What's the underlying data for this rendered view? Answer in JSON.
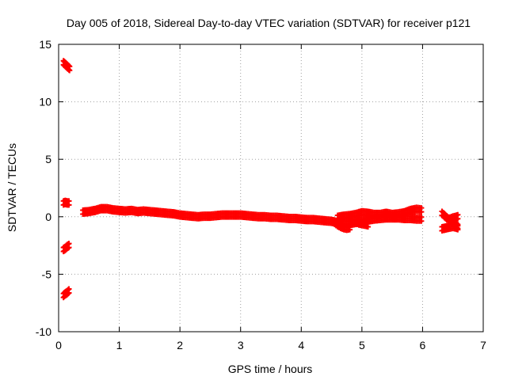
{
  "chart_data": {
    "type": "scatter",
    "title": "Day 005 of 2018, Sidereal Day-to-day VTEC variation (SDTVAR) for receiver p121",
    "xlabel": "GPS time / hours",
    "ylabel": "SDTVAR / TECUs",
    "xlim": [
      0,
      7
    ],
    "ylim": [
      -10,
      15
    ],
    "x_ticks": [
      0,
      1,
      2,
      3,
      4,
      5,
      6,
      7
    ],
    "y_ticks": [
      -10,
      -5,
      0,
      5,
      10,
      15
    ],
    "x_tick_labels": [
      "0",
      "1",
      "2",
      "3",
      "4",
      "5",
      "6",
      "7"
    ],
    "y_tick_labels": [
      "-10",
      "-5",
      "0",
      "5",
      "10",
      "15"
    ],
    "grid": true,
    "marker": "plus",
    "series_color": "#ff0000",
    "series": [
      {
        "segments": [
          {
            "x": [
              0.08,
              0.1,
              0.12,
              0.14,
              0.16,
              0.18
            ],
            "y": [
              13.4,
              13.3,
              13.2,
              13.1,
              13.0,
              12.9
            ]
          },
          {
            "x": [
              0.08,
              0.11,
              0.14,
              0.17
            ],
            "y": [
              1.2,
              1.25,
              1.2,
              1.2
            ]
          },
          {
            "x": [
              0.08,
              0.11,
              0.14,
              0.17
            ],
            "y": [
              -2.85,
              -2.75,
              -2.6,
              -2.5
            ]
          },
          {
            "x": [
              0.08,
              0.11,
              0.14,
              0.17
            ],
            "y": [
              -6.85,
              -6.7,
              -6.6,
              -6.45
            ]
          },
          {
            "x": [
              0.4,
              0.5,
              0.6,
              0.7,
              0.8,
              0.9,
              1.0,
              1.1,
              1.2,
              1.3,
              1.4,
              1.5,
              1.6,
              1.7,
              1.8,
              1.9,
              2.0,
              2.1,
              2.2,
              2.3,
              2.4,
              2.5,
              2.6,
              2.7,
              2.8,
              2.9,
              3.0,
              3.1,
              3.2,
              3.3,
              3.4,
              3.5,
              3.6,
              3.7,
              3.8,
              3.9,
              4.0,
              4.1,
              4.2,
              4.3,
              4.4,
              4.5,
              4.6,
              4.7,
              4.8,
              4.9,
              5.0,
              5.1,
              5.2,
              5.3,
              5.4,
              5.5,
              5.6,
              5.7,
              5.8,
              5.9,
              5.98
            ],
            "y": [
              0.4,
              0.45,
              0.55,
              0.7,
              0.7,
              0.6,
              0.55,
              0.5,
              0.55,
              0.45,
              0.5,
              0.45,
              0.4,
              0.35,
              0.3,
              0.25,
              0.15,
              0.1,
              0.05,
              0.0,
              0.05,
              0.05,
              0.1,
              0.15,
              0.15,
              0.15,
              0.15,
              0.1,
              0.05,
              0.0,
              0.0,
              -0.05,
              -0.05,
              -0.1,
              -0.15,
              -0.15,
              -0.2,
              -0.25,
              -0.25,
              -0.3,
              -0.35,
              -0.4,
              -0.5,
              -0.55,
              -0.6,
              -0.5,
              -0.4,
              -0.3,
              -0.2,
              -0.15,
              -0.1,
              -0.1,
              -0.1,
              -0.15,
              -0.15,
              -0.2,
              -0.2
            ]
          },
          {
            "x": [
              4.6,
              4.7,
              4.8,
              4.9,
              5.0,
              5.1,
              5.2,
              5.3,
              5.4,
              5.5,
              5.6,
              5.7,
              5.8,
              5.9,
              5.98
            ],
            "y": [
              -0.05,
              0.05,
              0.1,
              0.2,
              0.35,
              0.3,
              0.2,
              0.2,
              0.3,
              0.2,
              0.25,
              0.35,
              0.55,
              0.65,
              0.6
            ]
          },
          {
            "x": [
              4.55,
              4.6,
              4.65,
              4.7,
              4.75,
              4.8
            ],
            "y": [
              -0.5,
              -0.7,
              -0.85,
              -0.95,
              -1.0,
              -0.95
            ]
          },
          {
            "x": [
              4.9,
              4.95,
              5.0,
              5.05,
              5.1
            ],
            "y": [
              -0.45,
              -0.55,
              -0.6,
              -0.65,
              -0.7
            ]
          },
          {
            "x": [
              6.32,
              6.36,
              6.4,
              6.45,
              6.5,
              6.55,
              6.58
            ],
            "y": [
              0.3,
              0.1,
              -0.1,
              -0.3,
              -0.5,
              -0.7,
              -0.85
            ]
          },
          {
            "x": [
              6.32,
              6.36,
              6.4,
              6.45,
              6.5,
              6.55,
              6.58
            ],
            "y": [
              -1.05,
              -1.0,
              -0.95,
              -0.9,
              -0.85,
              -0.9,
              -0.95
            ]
          },
          {
            "x": [
              6.45,
              6.5,
              6.55,
              6.58
            ],
            "y": [
              -0.2,
              -0.1,
              -0.05,
              0.0
            ]
          }
        ]
      }
    ]
  }
}
